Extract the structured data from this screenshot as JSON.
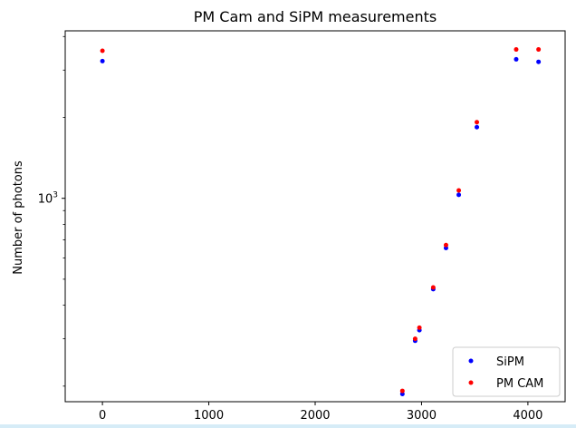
{
  "chart_data": {
    "type": "scatter",
    "title": "PM Cam and SiPM measurements",
    "xlabel": "",
    "ylabel": "Number of photons",
    "y_scale": "log",
    "xlim": [
      -350,
      4350
    ],
    "ylim": [
      175,
      4200
    ],
    "x_ticks": [
      0,
      1000,
      2000,
      3000,
      4000
    ],
    "x_tick_labels": [
      "0",
      "1000",
      "2000",
      "3000",
      "4000"
    ],
    "y_ticks": [
      1000
    ],
    "y_tick_labels": [
      "10^3"
    ],
    "grid": false,
    "legend_position": "lower-right",
    "series": [
      {
        "name": "SiPM",
        "color": "#0000ff",
        "points": [
          [
            0,
            3240
          ],
          [
            2820,
            187
          ],
          [
            2940,
            295
          ],
          [
            2980,
            323
          ],
          [
            3110,
            459
          ],
          [
            3230,
            653
          ],
          [
            3350,
            1030
          ],
          [
            3520,
            1840
          ],
          [
            3890,
            3290
          ],
          [
            4100,
            3220
          ]
        ]
      },
      {
        "name": "PM CAM",
        "color": "#ff0000",
        "points": [
          [
            0,
            3540
          ],
          [
            2820,
            192
          ],
          [
            2940,
            300
          ],
          [
            2980,
            330
          ],
          [
            3110,
            466
          ],
          [
            3230,
            670
          ],
          [
            3350,
            1070
          ],
          [
            3520,
            1920
          ],
          [
            3890,
            3580
          ],
          [
            4100,
            3580
          ]
        ]
      }
    ]
  }
}
